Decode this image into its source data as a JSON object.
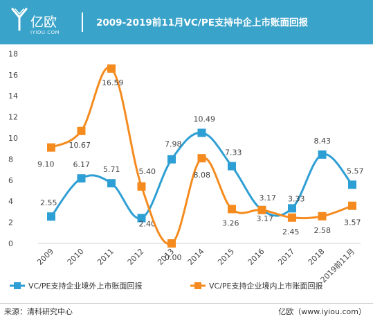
{
  "header": {
    "brand": "亿欧",
    "brand_sub": "IYIOU.COM",
    "title": "2009-2019前11月VC/PE支持中企上市账面回报",
    "bg_color": "#3aa3c9"
  },
  "footer": {
    "source": "来源：清科研究中心",
    "credit": "亿欧（www.iyiou.com）"
  },
  "chart_data": {
    "type": "line",
    "categories": [
      "2009",
      "2010",
      "2011",
      "2012",
      "2013",
      "2014",
      "2015",
      "2016",
      "2017",
      "2018",
      "2019前11月"
    ],
    "ylim": [
      0,
      18
    ],
    "yticks": [
      0,
      2,
      4,
      6,
      8,
      10,
      12,
      14,
      16,
      18
    ],
    "grid": false,
    "legend_position": "bottom",
    "series": [
      {
        "name": "VC/PE支持企业境外上市账面回报",
        "color": "#2e9fd4",
        "values": [
          2.55,
          6.17,
          5.71,
          2.4,
          7.98,
          10.49,
          7.33,
          3.17,
          3.33,
          8.43,
          5.57
        ],
        "labels": [
          "2.55",
          "6.17",
          "5.71",
          "2.40",
          "7.98",
          "10.49",
          "7.33",
          "3.17",
          "3.33",
          "8.43",
          "5.57"
        ]
      },
      {
        "name": "VC/PE支持企业境内上市账面回报",
        "color": "#f58b1f",
        "values": [
          9.1,
          10.67,
          16.59,
          5.4,
          0.0,
          8.08,
          3.26,
          3.17,
          2.45,
          2.58,
          3.57
        ],
        "labels": [
          "9.10",
          "10.67",
          "16.59",
          "5.40",
          "0.00",
          "8.08",
          "3.26",
          "3.17",
          "2.45",
          "2.58",
          "3.57"
        ]
      }
    ]
  }
}
